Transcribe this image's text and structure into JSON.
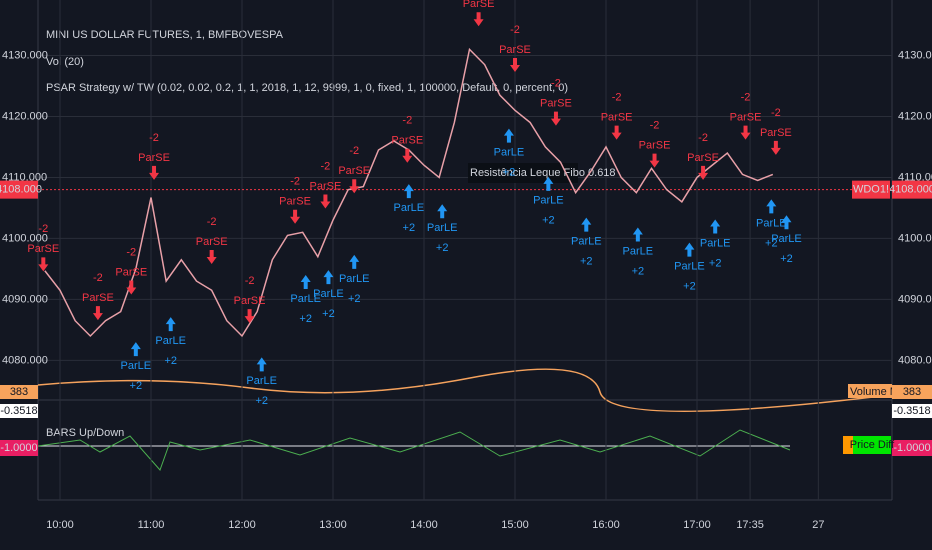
{
  "chart_data": {
    "type": "line",
    "title": "MINI US DOLLAR FUTURES, 1, BMFBOVESPA",
    "volume_title": "Vol (20)",
    "strategy_title": "PSAR Strategy w/ TW (0.02, 0.02, 0.2, 1, 1, 2018, 1, 12, 9999, 1, 0, fixed, 1, 100000, Default, 0, percent, 0)",
    "x": [
      "09:50",
      "10:00",
      "10:10",
      "10:20",
      "10:30",
      "10:40",
      "10:50",
      "11:00",
      "11:10",
      "11:20",
      "11:30",
      "11:40",
      "11:50",
      "12:00",
      "12:10",
      "12:20",
      "12:30",
      "12:40",
      "12:50",
      "13:00",
      "13:10",
      "13:20",
      "13:30",
      "13:40",
      "13:50",
      "14:00",
      "14:10",
      "14:20",
      "14:30",
      "14:40",
      "14:50",
      "15:00",
      "15:10",
      "15:20",
      "15:30",
      "15:40",
      "15:50",
      "16:00",
      "16:10",
      "16:20",
      "16:30",
      "16:40",
      "16:50",
      "17:00",
      "17:10",
      "17:20",
      "17:30",
      "17:40",
      "17:50"
    ],
    "series": [
      {
        "name": "WDO1!",
        "color": "#e8a0a8",
        "values": [
          4094.7,
          4091.5,
          4086.5,
          4084,
          4086.5,
          4088,
          4095,
          4106.7,
          4093,
          4096.5,
          4093,
          4091.5,
          4086.5,
          4084,
          4088,
          4096.5,
          4100.5,
          4101,
          4097,
          4103,
          4108,
          4108.5,
          4114.5,
          4116,
          4114.5,
          4112,
          4110,
          4119,
          4131,
          4128.5,
          4123.5,
          4121,
          4119,
          4115,
          4112.5,
          4107.5,
          4111,
          4115,
          4110,
          4107.5,
          4111.5,
          4108,
          4106,
          4110,
          4112,
          4114,
          4110.5,
          4109.5,
          4110.5
        ]
      }
    ],
    "ylim": [
      4073.5,
      4139.1
    ],
    "yticks": [
      {
        "value": 4080,
        "label": "4080.000"
      },
      {
        "value": 4090,
        "label": "4090.000"
      },
      {
        "value": 4100,
        "label": "4100.000"
      },
      {
        "value": 4110,
        "label": "4110.000"
      },
      {
        "value": 4120,
        "label": "4120.000"
      },
      {
        "value": 4130,
        "label": "4130.000"
      }
    ],
    "xticks": [
      "10:00",
      "11:00",
      "12:00",
      "13:00",
      "14:00",
      "15:00",
      "16:00",
      "17:00",
      "17:35",
      {
        "value": "18:20",
        "label": "27"
      }
    ],
    "grid": true,
    "last_price": {
      "value": 4108,
      "label": "4108.000"
    },
    "symbol_label": "WDO1!",
    "line_annotation": "Resistência Leque Fibo 0.618",
    "short_color": "#f23645",
    "long_color": "#2196f3",
    "signals": [
      {
        "time": "09:49",
        "label": "ParSE",
        "qty": "-2",
        "price": 4094.6
      },
      {
        "time": "10:25",
        "label": "ParSE",
        "qty": "-2",
        "price": 4086.6
      },
      {
        "time": "10:47",
        "label": "ParSE",
        "qty": "-2",
        "price": 4090.8
      },
      {
        "time": "11:02",
        "label": "ParSE",
        "qty": "-2",
        "price": 4109.6
      },
      {
        "time": "11:40",
        "label": "ParSE",
        "qty": "-2",
        "price": 4095.8
      },
      {
        "time": "12:05",
        "label": "ParSE",
        "qty": "-2",
        "price": 4086.1
      },
      {
        "time": "12:35",
        "label": "ParSE",
        "qty": "-2",
        "price": 4102.4
      },
      {
        "time": "12:55",
        "label": "ParSE",
        "qty": "-2",
        "price": 4104.9
      },
      {
        "time": "13:14",
        "label": "ParSE",
        "qty": "-2",
        "price": 4107.4
      },
      {
        "time": "13:49",
        "label": "ParSE",
        "qty": "-2",
        "price": 4112.4
      },
      {
        "time": "14:36",
        "label": "ParSE",
        "qty": "-2",
        "price": 4134.8
      },
      {
        "time": "15:00",
        "label": "ParSE",
        "qty": "-2",
        "price": 4127.3
      },
      {
        "time": "15:27",
        "label": "ParSE",
        "qty": "-2",
        "price": 4118.5
      },
      {
        "time": "16:07",
        "label": "ParSE",
        "qty": "-2",
        "price": 4116.2
      },
      {
        "time": "16:32",
        "label": "ParSE",
        "qty": "-2",
        "price": 4111.6
      },
      {
        "time": "17:04",
        "label": "ParSE",
        "qty": "-2",
        "price": 4109.6
      },
      {
        "time": "17:32",
        "label": "ParSE",
        "qty": "-2",
        "price": 4116.2
      },
      {
        "time": "17:52",
        "label": "ParSE",
        "qty": "-2",
        "price": 4113.7
      },
      {
        "time": "10:50",
        "label": "ParLE",
        "qty": "+2",
        "price": 4083.0
      },
      {
        "time": "11:13",
        "label": "ParLE",
        "qty": "+2",
        "price": 4087.1
      },
      {
        "time": "12:13",
        "label": "ParLE",
        "qty": "+2",
        "price": 4080.5
      },
      {
        "time": "12:42",
        "label": "ParLE",
        "qty": "+2",
        "price": 4094.0
      },
      {
        "time": "12:57",
        "label": "ParLE",
        "qty": "+2",
        "price": 4094.8
      },
      {
        "time": "13:14",
        "label": "ParLE",
        "qty": "+2",
        "price": 4097.3
      },
      {
        "time": "13:50",
        "label": "ParLE",
        "qty": "+2",
        "price": 4108.9
      },
      {
        "time": "14:12",
        "label": "ParLE",
        "qty": "+2",
        "price": 4105.6
      },
      {
        "time": "14:56",
        "label": "ParLE",
        "qty": "+2",
        "price": 4118.0
      },
      {
        "time": "15:22",
        "label": "ParLE",
        "qty": "+2",
        "price": 4110.1
      },
      {
        "time": "15:47",
        "label": "ParLE",
        "qty": "+2",
        "price": 4103.4
      },
      {
        "time": "16:21",
        "label": "ParLE",
        "qty": "+2",
        "price": 4101.8
      },
      {
        "time": "16:55",
        "label": "ParLE",
        "qty": "+2",
        "price": 4099.3
      },
      {
        "time": "17:12",
        "label": "ParLE",
        "qty": "+2",
        "price": 4103.1
      },
      {
        "time": "17:49",
        "label": "ParLE",
        "qty": "+2",
        "price": 4106.4
      },
      {
        "time": "17:59",
        "label": "ParLE",
        "qty": "+2",
        "price": 4103.8
      }
    ],
    "volume_label": "Volume MA",
    "volume_value": "383",
    "oscillator_title": "BARS Up/Down",
    "oscillator_values": [
      "-0.3518",
      "-1.0000"
    ],
    "oscillator_badge": "Price Diff"
  }
}
